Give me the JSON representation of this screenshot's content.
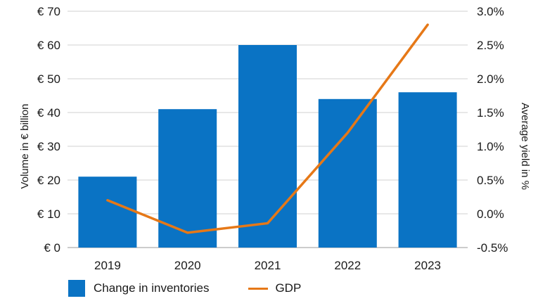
{
  "chart_data": {
    "type": "bar",
    "categories": [
      "2019",
      "2020",
      "2021",
      "2022",
      "2023"
    ],
    "series": [
      {
        "name": "Change in inventories",
        "kind": "bar",
        "axis": "left",
        "values": [
          21,
          41,
          60,
          44,
          46
        ],
        "color": "#0a73c4"
      },
      {
        "name": "GDP",
        "kind": "line",
        "axis": "right",
        "values": [
          0.2,
          -0.28,
          -0.14,
          1.2,
          2.8
        ],
        "color": "#e67817"
      }
    ],
    "y_left": {
      "label": "Volume in € billion",
      "ylim": [
        0,
        70
      ],
      "ticks": [
        0,
        10,
        20,
        30,
        40,
        50,
        60,
        70
      ],
      "tick_labels": [
        "€ 0",
        "€ 10",
        "€ 20",
        "€ 30",
        "€ 40",
        "€ 50",
        "€ 60",
        "€ 70"
      ]
    },
    "y_right": {
      "label": "Average yield in %",
      "ylim": [
        -0.5,
        3.0
      ],
      "ticks": [
        -0.5,
        0.0,
        0.5,
        1.0,
        1.5,
        2.0,
        2.5,
        3.0
      ],
      "tick_labels": [
        "-0.5%",
        "0.0%",
        "0.5%",
        "1.0%",
        "1.5%",
        "2.0%",
        "2.5%",
        "3.0%"
      ]
    },
    "grid": true,
    "legend_position": "bottom-left"
  }
}
